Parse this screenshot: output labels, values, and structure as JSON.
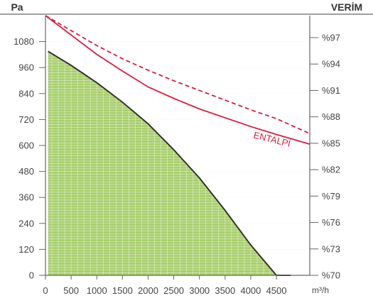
{
  "chart_data": {
    "type": "area",
    "y_left_label": "Pa",
    "y_right_label": "VERİM",
    "x_unit": "m³/h",
    "xlim": [
      0,
      5150
    ],
    "ylim": [
      0,
      1200
    ],
    "y2lim": [
      70,
      99.5
    ],
    "x_ticks": [
      "0",
      "500",
      "1000",
      "1500",
      "2000",
      "2500",
      "3000",
      "3500",
      "4000",
      "4500"
    ],
    "x_tick_values": [
      0,
      500,
      1000,
      1500,
      2000,
      2500,
      3000,
      3500,
      4000,
      4500
    ],
    "y_ticks": [
      "0",
      "120",
      "240",
      "360",
      "480",
      "600",
      "720",
      "840",
      "960",
      "1080"
    ],
    "y_tick_values": [
      0,
      120,
      240,
      360,
      480,
      600,
      720,
      840,
      960,
      1080
    ],
    "y2_ticks": [
      "%70",
      "%73",
      "%76",
      "%79",
      "%82",
      "%85",
      "%88",
      "%91",
      "%94",
      "%97"
    ],
    "y2_tick_values": [
      70,
      73,
      76,
      79,
      82,
      85,
      88,
      91,
      94,
      97
    ],
    "grid": true,
    "series": [
      {
        "style": "area",
        "axis": "left",
        "color": "#333333",
        "fill": "#a8cf6c",
        "x": [
          50,
          500,
          1000,
          1500,
          2000,
          2500,
          3000,
          3500,
          4000,
          4500,
          4780
        ],
        "y": [
          1035,
          970,
          890,
          800,
          700,
          580,
          450,
          300,
          140,
          0,
          0
        ]
      },
      {
        "name": "ENTALPİ",
        "style": "solid",
        "axis": "right",
        "color": "#d81e3c",
        "x": [
          0,
          500,
          1000,
          1500,
          2000,
          2500,
          3000,
          3500,
          4000,
          4500,
          5150
        ],
        "y": [
          99.5,
          97.3,
          95.1,
          93.2,
          91.4,
          90.1,
          88.9,
          87.9,
          86.9,
          86.0,
          84.9
        ]
      },
      {
        "style": "dashed",
        "axis": "right",
        "color": "#d81e3c",
        "x": [
          0,
          500,
          1000,
          1500,
          2000,
          2500,
          3000,
          3500,
          4000,
          4500,
          5150
        ],
        "y": [
          99.5,
          97.8,
          96.1,
          94.6,
          93.3,
          92.1,
          91.0,
          89.9,
          88.8,
          87.8,
          86.1
        ]
      }
    ],
    "annotations": [
      {
        "text": "ENTALPİ",
        "x": 4400,
        "y2": 85.1
      }
    ]
  }
}
